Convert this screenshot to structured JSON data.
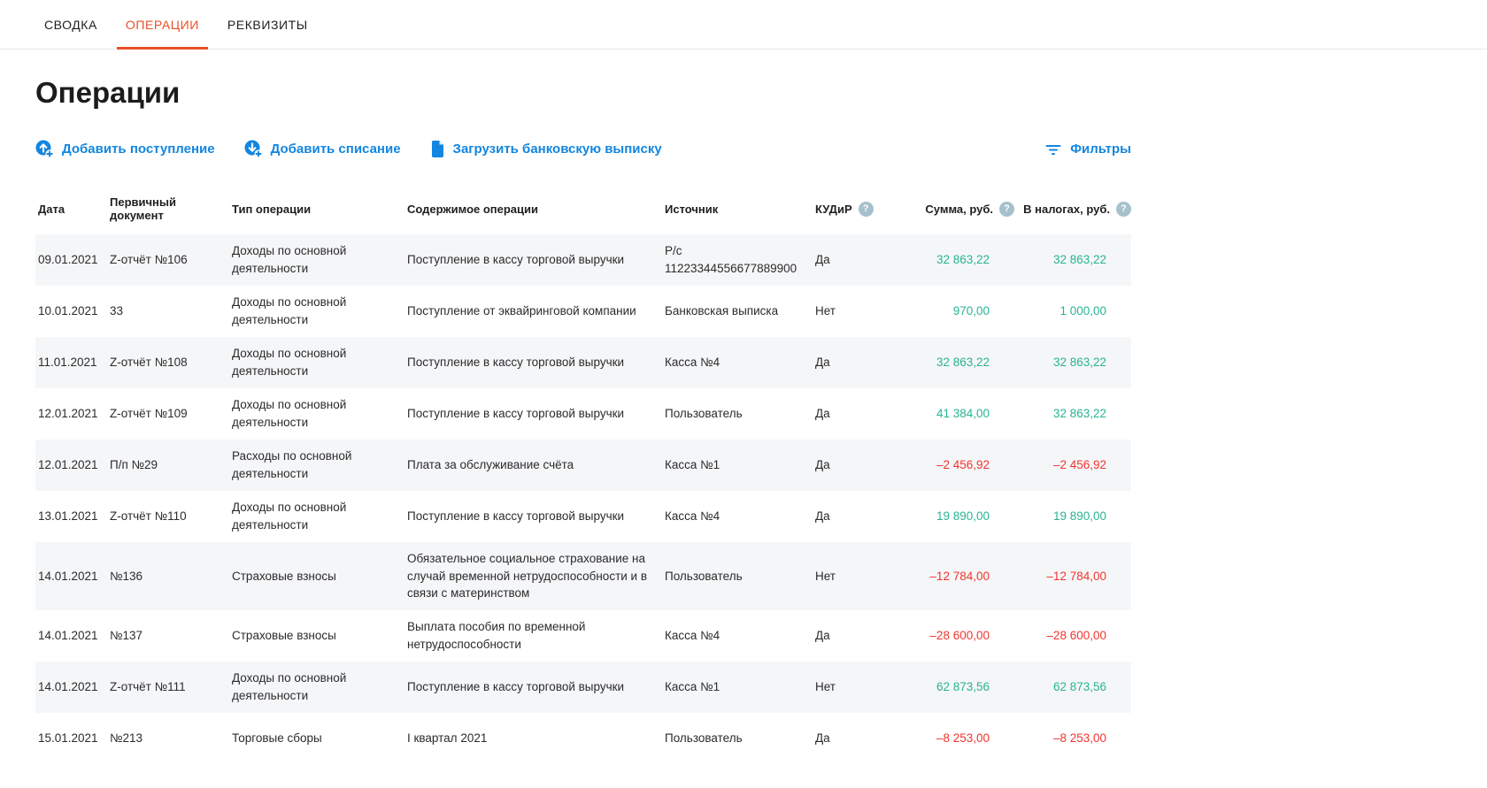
{
  "tabs": [
    {
      "key": "summary",
      "label": "СВОДКА",
      "active": false
    },
    {
      "key": "operations",
      "label": "ОПЕРАЦИИ",
      "active": true
    },
    {
      "key": "details",
      "label": "РЕКВИЗИТЫ",
      "active": false
    }
  ],
  "page_title": "Операции",
  "actions": {
    "add_income": "Добавить поступление",
    "add_expense": "Добавить списание",
    "upload_statement": "Загрузить банковскую выписку",
    "filters": "Фильтры"
  },
  "icons": {
    "add_income": "arrow-up-circle-plus-icon",
    "add_expense": "arrow-down-circle-plus-icon",
    "upload_statement": "document-icon",
    "filters": "filter-icon",
    "column_help": "question-circle-icon"
  },
  "colors": {
    "accent_blue": "#1286e0",
    "active_tab": "#eb4f28",
    "positive_amount": "#28b491",
    "negative_amount": "#f2342c",
    "help_icon_bg": "#a6c1cb",
    "row_stripe": "#f5f6f8"
  },
  "table": {
    "columns": [
      {
        "key": "date",
        "label": "Дата",
        "help": false
      },
      {
        "key": "document",
        "label": "Первичный документ",
        "help": false
      },
      {
        "key": "type",
        "label": "Тип операции",
        "help": false
      },
      {
        "key": "content",
        "label": "Содержимое операции",
        "help": false
      },
      {
        "key": "source",
        "label": "Источник",
        "help": false
      },
      {
        "key": "kudir",
        "label": "КУДиР",
        "help": true
      },
      {
        "key": "sum",
        "label": "Сумма, руб.",
        "help": true
      },
      {
        "key": "tax",
        "label": "В налогах, руб.",
        "help": true
      }
    ],
    "rows": [
      {
        "date": "09.01.2021",
        "document": "Z-отчёт №106",
        "type": "Доходы по основной деятельности",
        "content": "Поступление в кассу торговой выручки",
        "source": "Р/с 11223344556677889900",
        "kudir": "Да",
        "sum": "32 863,22",
        "tax": "32 863,22",
        "negative": false
      },
      {
        "date": "10.01.2021",
        "document": "33",
        "type": "Доходы по основной деятельности",
        "content": "Поступление от эквайринговой компании",
        "source": "Банковская выписка",
        "kudir": "Нет",
        "sum": "970,00",
        "tax": "1 000,00",
        "negative": false
      },
      {
        "date": "11.01.2021",
        "document": "Z-отчёт №108",
        "type": "Доходы по основной деятельности",
        "content": "Поступление в кассу торговой выручки",
        "source": "Касса №4",
        "kudir": "Да",
        "sum": "32 863,22",
        "tax": "32 863,22",
        "negative": false
      },
      {
        "date": "12.01.2021",
        "document": "Z-отчёт №109",
        "type": "Доходы по основной деятельности",
        "content": "Поступление в кассу торговой выручки",
        "source": "Пользователь",
        "kudir": "Да",
        "sum": "41 384,00",
        "tax": "32 863,22",
        "negative": false
      },
      {
        "date": "12.01.2021",
        "document": "П/п №29",
        "type": "Расходы по основной деятельности",
        "content": "Плата за обслуживание счёта",
        "source": "Касса №1",
        "kudir": "Да",
        "sum": "–2 456,92",
        "tax": "–2 456,92",
        "negative": true
      },
      {
        "date": "13.01.2021",
        "document": "Z-отчёт №110",
        "type": "Доходы по основной деятельности",
        "content": "Поступление в кассу торговой выручки",
        "source": "Касса №4",
        "kudir": "Да",
        "sum": "19 890,00",
        "tax": "19 890,00",
        "negative": false
      },
      {
        "date": "14.01.2021",
        "document": "№136",
        "type": "Страховые взносы",
        "content": "Обязательное социальное страхование на случай временной нетрудоспособности и в связи с материнством",
        "source": "Пользователь",
        "kudir": "Нет",
        "sum": "–12 784,00",
        "tax": "–12 784,00",
        "negative": true
      },
      {
        "date": "14.01.2021",
        "document": "№137",
        "type": "Страховые взносы",
        "content": "Выплата пособия по временной нетрудоспособности",
        "source": "Касса №4",
        "kudir": "Да",
        "sum": "–28 600,00",
        "tax": "–28 600,00",
        "negative": true
      },
      {
        "date": "14.01.2021",
        "document": "Z-отчёт №111",
        "type": "Доходы по основной деятельности",
        "content": "Поступление в кассу торговой выручки",
        "source": "Касса №1",
        "kudir": "Нет",
        "sum": "62 873,56",
        "tax": "62 873,56",
        "negative": false
      },
      {
        "date": "15.01.2021",
        "document": "№213",
        "type": "Торговые сборы",
        "content": "I квартал 2021",
        "source": "Пользователь",
        "kudir": "Да",
        "sum": "–8 253,00",
        "tax": "–8 253,00",
        "negative": true
      }
    ]
  }
}
